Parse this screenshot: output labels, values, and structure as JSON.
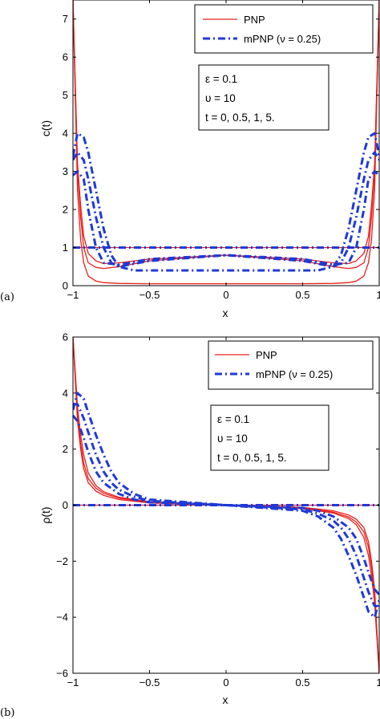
{
  "chart_data": [
    {
      "type": "line",
      "panel_label": "(a)",
      "xlabel": "x",
      "ylabel": "c(t)",
      "xlim": [
        -1,
        1
      ],
      "ylim": [
        0,
        7.5
      ],
      "xticks": [
        -1,
        -0.5,
        0,
        0.5,
        1
      ],
      "xtick_labels": [
        "−1",
        "−0.5",
        "0",
        "0.5",
        "1"
      ],
      "yticks": [
        0,
        1,
        2,
        3,
        4,
        5,
        6,
        7
      ],
      "ytick_labels": [
        "0",
        "1",
        "2",
        "3",
        "4",
        "5",
        "6",
        "7"
      ],
      "legend": {
        "position": "top-right",
        "entries": [
          "PNP",
          "mPNP (ν = 0.25)"
        ]
      },
      "annotation": [
        "ε = 0.1",
        "υ = 10",
        "t = 0, 0.5, 1, 5."
      ],
      "grid": false,
      "series": [
        {
          "name": "PNP",
          "t": 0,
          "style": "solid",
          "color": "#e8201c",
          "x": [
            -1,
            -0.5,
            0,
            0.5,
            1
          ],
          "y": [
            1,
            1,
            1,
            1,
            1
          ]
        },
        {
          "name": "PNP",
          "t": 0.5,
          "style": "solid",
          "color": "#e8201c",
          "x": [
            -1,
            -0.97,
            -0.95,
            -0.93,
            -0.9,
            -0.85,
            -0.8,
            -0.7,
            -0.5,
            0,
            0.5,
            0.7,
            0.8,
            0.85,
            0.9,
            0.93,
            0.95,
            0.97,
            1
          ],
          "y": [
            7.5,
            3.2,
            2.1,
            1.3,
            0.85,
            0.65,
            0.58,
            0.6,
            0.7,
            0.8,
            0.7,
            0.6,
            0.58,
            0.65,
            0.85,
            1.3,
            2.1,
            3.2,
            7.5
          ]
        },
        {
          "name": "PNP",
          "t": 1,
          "style": "solid",
          "color": "#e8201c",
          "x": [
            -1,
            -0.97,
            -0.95,
            -0.93,
            -0.9,
            -0.85,
            -0.8,
            -0.7,
            -0.5,
            0,
            0.5,
            0.7,
            0.8,
            0.85,
            0.9,
            0.93,
            0.95,
            0.97,
            1
          ],
          "y": [
            7.5,
            3.0,
            1.8,
            1.0,
            0.6,
            0.48,
            0.45,
            0.5,
            0.65,
            0.8,
            0.65,
            0.5,
            0.45,
            0.48,
            0.6,
            1.0,
            1.8,
            3.0,
            7.5
          ]
        },
        {
          "name": "PNP",
          "t": 5,
          "style": "solid",
          "color": "#e8201c",
          "x": [
            -1,
            -0.97,
            -0.95,
            -0.93,
            -0.9,
            -0.85,
            -0.8,
            -0.7,
            -0.5,
            0,
            0.5,
            0.7,
            0.8,
            0.85,
            0.9,
            0.93,
            0.95,
            0.97,
            1
          ],
          "y": [
            7.5,
            2.5,
            1.2,
            0.6,
            0.25,
            0.12,
            0.08,
            0.06,
            0.05,
            0.05,
            0.05,
            0.06,
            0.08,
            0.12,
            0.25,
            0.6,
            1.2,
            2.5,
            7.5
          ]
        },
        {
          "name": "mPNP (ν = 0.25)",
          "t": 0,
          "style": "dashdot",
          "color": "#1f3ad6",
          "x": [
            -1,
            -0.5,
            0,
            0.5,
            1
          ],
          "y": [
            1,
            1,
            1,
            1,
            1
          ]
        },
        {
          "name": "mPNP (ν = 0.25)",
          "t": 0.5,
          "style": "dashdot",
          "color": "#1f3ad6",
          "x": [
            -1,
            -0.97,
            -0.93,
            -0.9,
            -0.85,
            -0.8,
            -0.7,
            -0.5,
            0,
            0.5,
            0.7,
            0.8,
            0.85,
            0.9,
            0.93,
            0.97,
            1
          ],
          "y": [
            2.9,
            3.0,
            2.8,
            2.0,
            1.0,
            0.6,
            0.55,
            0.7,
            0.8,
            0.7,
            0.55,
            0.6,
            1.0,
            2.0,
            2.8,
            3.0,
            2.9
          ]
        },
        {
          "name": "mPNP (ν = 0.25)",
          "t": 1,
          "style": "dashdot",
          "color": "#1f3ad6",
          "x": [
            -1,
            -0.97,
            -0.93,
            -0.9,
            -0.85,
            -0.8,
            -0.75,
            -0.7,
            -0.5,
            0,
            0.5,
            0.7,
            0.75,
            0.8,
            0.85,
            0.9,
            0.93,
            0.97,
            1
          ],
          "y": [
            3.3,
            3.5,
            3.3,
            2.8,
            1.8,
            1.0,
            0.6,
            0.5,
            0.65,
            0.8,
            0.65,
            0.5,
            0.6,
            1.0,
            1.8,
            2.8,
            3.3,
            3.5,
            3.3
          ]
        },
        {
          "name": "mPNP (ν = 0.25)",
          "t": 5,
          "style": "dashdot",
          "color": "#1f3ad6",
          "x": [
            -1,
            -0.97,
            -0.93,
            -0.9,
            -0.85,
            -0.8,
            -0.75,
            -0.7,
            -0.6,
            -0.5,
            0,
            0.5,
            0.6,
            0.7,
            0.75,
            0.8,
            0.85,
            0.9,
            0.93,
            0.97,
            1
          ],
          "y": [
            3.4,
            4.0,
            3.9,
            3.5,
            2.5,
            1.5,
            0.8,
            0.5,
            0.4,
            0.4,
            0.4,
            0.4,
            0.4,
            0.5,
            0.8,
            1.5,
            2.5,
            3.5,
            3.9,
            4.0,
            3.4
          ]
        }
      ]
    },
    {
      "type": "line",
      "panel_label": "(b)",
      "xlabel": "x",
      "ylabel": "ρ(t)",
      "xlim": [
        -1,
        1
      ],
      "ylim": [
        -6,
        6
      ],
      "xticks": [
        -1,
        -0.5,
        0,
        0.5,
        1
      ],
      "xtick_labels": [
        "−1",
        "−0.5",
        "0",
        "0.5",
        "1"
      ],
      "yticks": [
        -6,
        -4,
        -2,
        0,
        2,
        4,
        6
      ],
      "ytick_labels": [
        "−6",
        "−4",
        "−2",
        "0",
        "2",
        "4",
        "6"
      ],
      "legend": {
        "position": "top-right",
        "entries": [
          "PNP",
          "mPNP (ν = 0.25)"
        ]
      },
      "annotation": [
        "ε = 0.1",
        "υ = 10",
        "t = 0, 0.5, 1, 5."
      ],
      "grid": false,
      "series": [
        {
          "name": "PNP",
          "t": 0,
          "style": "solid",
          "color": "#e8201c",
          "x": [
            -1,
            0,
            1
          ],
          "y": [
            0,
            0,
            0
          ]
        },
        {
          "name": "PNP",
          "t": 0.5,
          "style": "solid",
          "color": "#e8201c",
          "x": [
            -1,
            -0.97,
            -0.95,
            -0.93,
            -0.9,
            -0.85,
            -0.8,
            -0.7,
            -0.5,
            0,
            0.5,
            0.7,
            0.8,
            0.85,
            0.9,
            0.93,
            0.95,
            0.97,
            1
          ],
          "y": [
            6,
            3.0,
            2.0,
            1.3,
            0.8,
            0.5,
            0.35,
            0.2,
            0.08,
            0,
            -0.08,
            -0.2,
            -0.35,
            -0.5,
            -0.8,
            -1.3,
            -2.0,
            -3.0,
            -6
          ]
        },
        {
          "name": "PNP",
          "t": 1,
          "style": "solid",
          "color": "#e8201c",
          "x": [
            -1,
            -0.97,
            -0.95,
            -0.93,
            -0.9,
            -0.85,
            -0.8,
            -0.7,
            -0.5,
            0,
            0.5,
            0.7,
            0.8,
            0.85,
            0.9,
            0.93,
            0.95,
            0.97,
            1
          ],
          "y": [
            6,
            3.2,
            2.2,
            1.5,
            0.95,
            0.6,
            0.42,
            0.25,
            0.1,
            0,
            -0.1,
            -0.25,
            -0.42,
            -0.6,
            -0.95,
            -1.5,
            -2.2,
            -3.2,
            -6
          ]
        },
        {
          "name": "PNP",
          "t": 5,
          "style": "solid",
          "color": "#e8201c",
          "x": [
            -1,
            -0.97,
            -0.95,
            -0.93,
            -0.9,
            -0.85,
            -0.8,
            -0.7,
            -0.5,
            0,
            0.5,
            0.7,
            0.8,
            0.85,
            0.9,
            0.93,
            0.95,
            0.97,
            1
          ],
          "y": [
            6,
            3.5,
            2.5,
            1.8,
            1.15,
            0.7,
            0.48,
            0.28,
            0.12,
            0,
            -0.12,
            -0.28,
            -0.48,
            -0.7,
            -1.15,
            -1.8,
            -2.5,
            -3.5,
            -6
          ]
        },
        {
          "name": "mPNP (ν = 0.25)",
          "t": 0,
          "style": "dashdot",
          "color": "#1f3ad6",
          "x": [
            -1,
            0,
            1
          ],
          "y": [
            0,
            0,
            0
          ]
        },
        {
          "name": "mPNP (ν = 0.25)",
          "t": 0.5,
          "style": "dashdot",
          "color": "#1f3ad6",
          "x": [
            -1,
            -0.97,
            -0.93,
            -0.9,
            -0.85,
            -0.8,
            -0.7,
            -0.6,
            -0.5,
            0,
            0.5,
            0.6,
            0.7,
            0.8,
            0.85,
            0.9,
            0.93,
            0.97,
            1
          ],
          "y": [
            3.2,
            3.0,
            2.4,
            1.9,
            1.2,
            0.8,
            0.4,
            0.2,
            0.1,
            0,
            -0.1,
            -0.2,
            -0.4,
            -0.8,
            -1.2,
            -1.9,
            -2.4,
            -3.0,
            -3.2
          ]
        },
        {
          "name": "mPNP (ν = 0.25)",
          "t": 1,
          "style": "dashdot",
          "color": "#1f3ad6",
          "x": [
            -1,
            -0.97,
            -0.93,
            -0.9,
            -0.85,
            -0.8,
            -0.75,
            -0.7,
            -0.6,
            -0.5,
            0,
            0.5,
            0.6,
            0.7,
            0.75,
            0.8,
            0.85,
            0.9,
            0.93,
            0.97,
            1
          ],
          "y": [
            3.6,
            3.6,
            3.1,
            2.6,
            1.8,
            1.2,
            0.8,
            0.55,
            0.3,
            0.15,
            0,
            -0.15,
            -0.3,
            -0.55,
            -0.8,
            -1.2,
            -1.8,
            -2.6,
            -3.1,
            -3.6,
            -3.6
          ]
        },
        {
          "name": "mPNP (ν = 0.25)",
          "t": 5,
          "style": "dashdot",
          "color": "#1f3ad6",
          "x": [
            -1,
            -0.97,
            -0.93,
            -0.9,
            -0.85,
            -0.8,
            -0.75,
            -0.7,
            -0.6,
            -0.5,
            0,
            0.5,
            0.6,
            0.7,
            0.75,
            0.8,
            0.85,
            0.9,
            0.93,
            0.97,
            1
          ],
          "y": [
            3.4,
            4.0,
            3.8,
            3.3,
            2.5,
            1.8,
            1.2,
            0.8,
            0.4,
            0.2,
            0,
            -0.2,
            -0.4,
            -0.8,
            -1.2,
            -1.8,
            -2.5,
            -3.3,
            -3.8,
            -4.0,
            -3.4
          ]
        }
      ]
    }
  ]
}
